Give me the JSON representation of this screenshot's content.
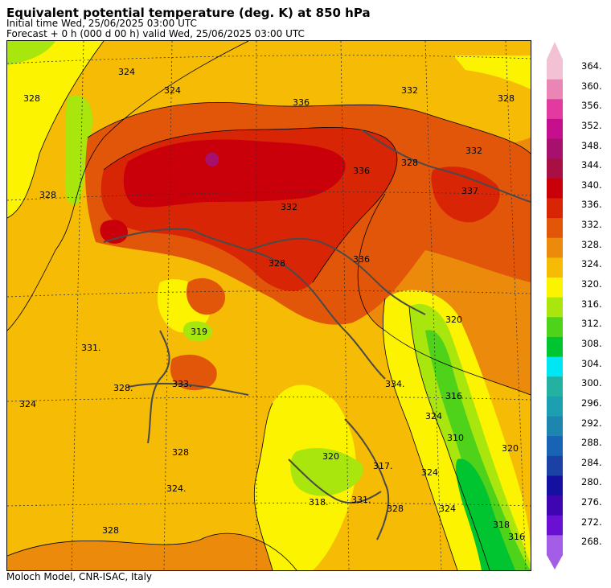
{
  "header": {
    "title": "Equivalent potential temperature (deg. K) at 850 hPa",
    "initial_time": "Initial time  Wed, 25/06/2025  03:00 UTC",
    "forecast": "Forecast  +    0 h  (000 d 00 h)  valid Wed, 25/06/2025 03:00 UTC"
  },
  "footer": {
    "credit": "Moloch Model, CNR-ISAC, Italy"
  },
  "colorbar": {
    "ticks": [
      "364.",
      "360.",
      "356.",
      "352.",
      "348.",
      "344.",
      "340.",
      "336.",
      "332.",
      "328.",
      "324.",
      "320.",
      "316.",
      "312.",
      "308.",
      "304.",
      "300.",
      "296.",
      "292.",
      "288.",
      "284.",
      "280.",
      "276.",
      "272.",
      "268."
    ],
    "colors": [
      "#f2c1d3",
      "#e986b5",
      "#e23a9e",
      "#c50f8c",
      "#a8106e",
      "#a80f45",
      "#c9000a",
      "#d82506",
      "#e2560a",
      "#ec8a0c",
      "#f5bb05",
      "#fcf300",
      "#a9e60d",
      "#4ed21a",
      "#00c430",
      "#00e6f3",
      "#23b2a2",
      "#1e9fb1",
      "#1d86ae",
      "#1963b4",
      "#1b41a4",
      "#1610a0",
      "#3d06b0",
      "#6a10d2",
      "#a45de6"
    ]
  },
  "map": {
    "contour_labels": [
      {
        "text": "324",
        "value": 324
      },
      {
        "text": "324",
        "value": 324
      },
      {
        "text": "328",
        "value": 328
      },
      {
        "text": "328",
        "value": 328
      },
      {
        "text": "336",
        "value": 336
      },
      {
        "text": "332",
        "value": 332
      },
      {
        "text": "328",
        "value": 328
      },
      {
        "text": "332",
        "value": 332
      },
      {
        "text": "337",
        "value": 337
      },
      {
        "text": "336",
        "value": 336
      },
      {
        "text": "328",
        "value": 328
      },
      {
        "text": "336",
        "value": 336
      },
      {
        "text": "332",
        "value": 332
      },
      {
        "text": "328",
        "value": 328
      },
      {
        "text": "319",
        "value": 319
      },
      {
        "text": "331.",
        "value": 331
      },
      {
        "text": "333.",
        "value": 333
      },
      {
        "text": "328.",
        "value": 328
      },
      {
        "text": "324",
        "value": 324
      },
      {
        "text": "328",
        "value": 328
      },
      {
        "text": "324.",
        "value": 324
      },
      {
        "text": "328",
        "value": 328
      },
      {
        "text": "334.",
        "value": 334
      },
      {
        "text": "320",
        "value": 320
      },
      {
        "text": "316",
        "value": 316
      },
      {
        "text": "310",
        "value": 310
      },
      {
        "text": "320",
        "value": 320
      },
      {
        "text": "324",
        "value": 324
      },
      {
        "text": "317.",
        "value": 317
      },
      {
        "text": "318.",
        "value": 318
      },
      {
        "text": "331.",
        "value": 331
      },
      {
        "text": "328",
        "value": 328
      },
      {
        "text": "324",
        "value": 324
      },
      {
        "text": "318",
        "value": 318
      },
      {
        "text": "316",
        "value": 316
      },
      {
        "text": "320",
        "value": 320
      },
      {
        "text": "324",
        "value": 324
      }
    ]
  }
}
